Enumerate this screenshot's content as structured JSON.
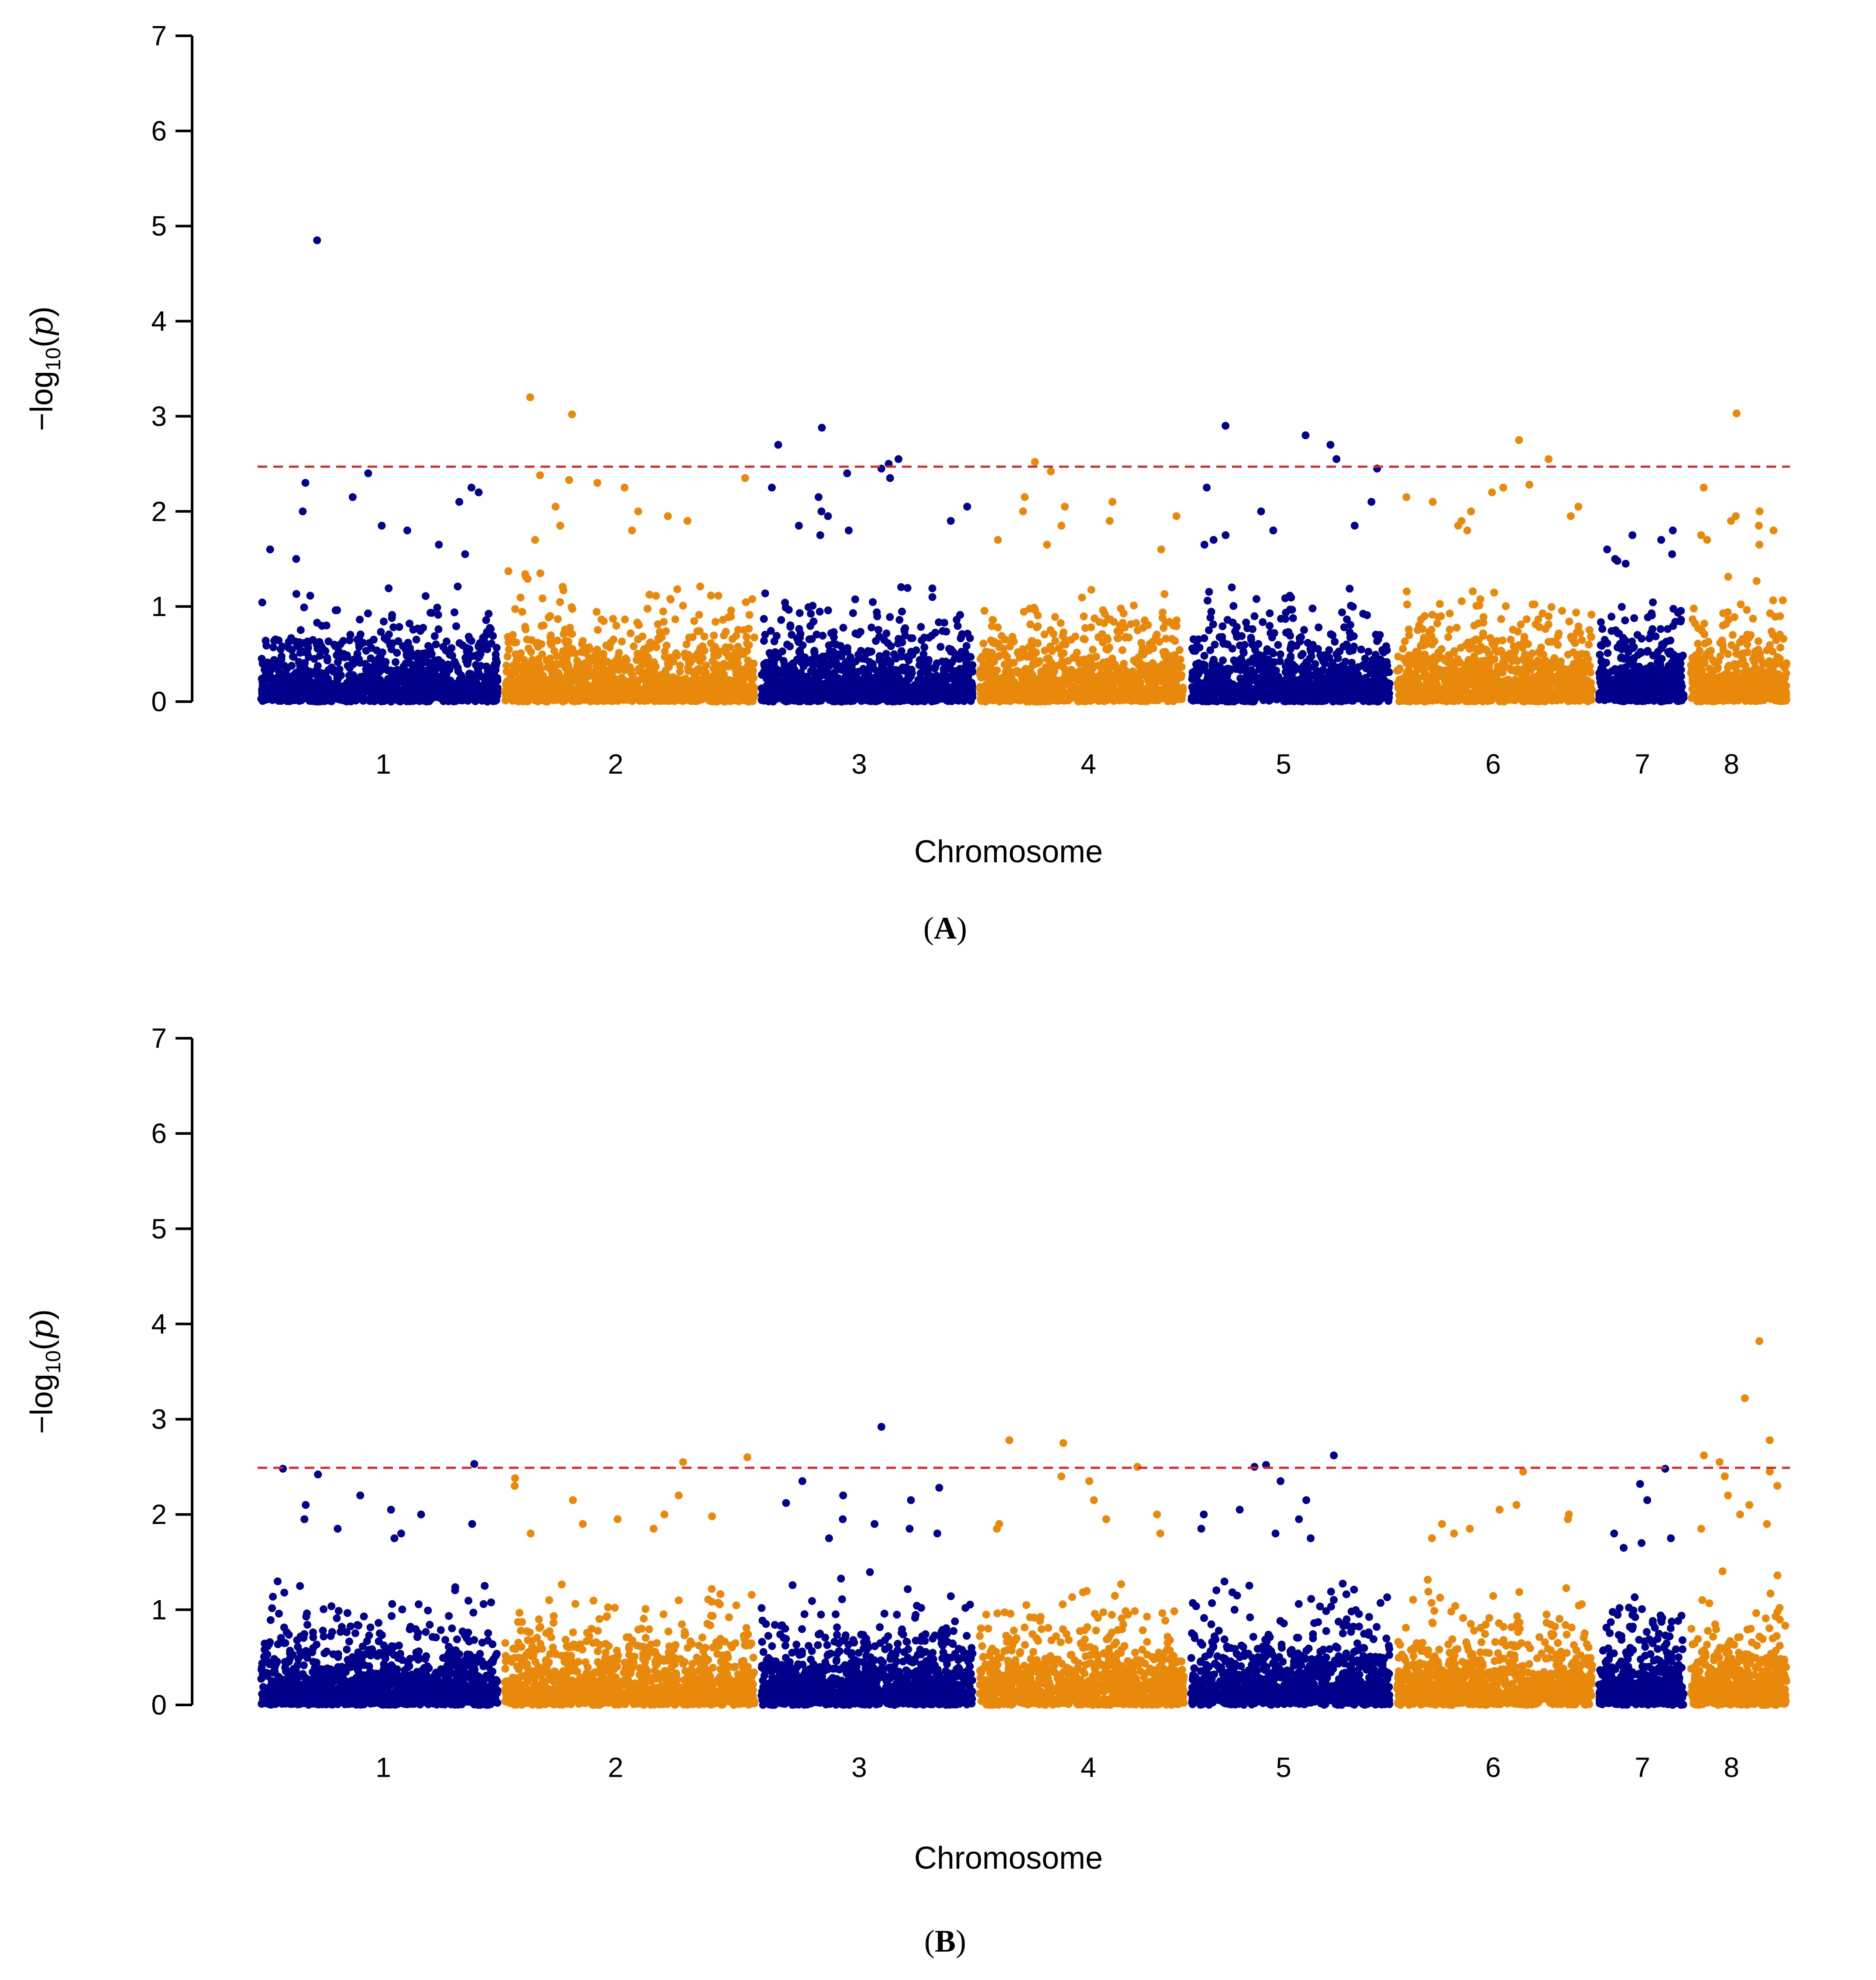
{
  "colors": {
    "series_odd": "#00008b",
    "series_even": "#e8890c",
    "threshold": "#d62a2a",
    "axis": "#000000"
  },
  "chart_data": [
    {
      "type": "scatter",
      "panel_label": "A",
      "xlabel": "Chromosome",
      "ylabel": "−log10(p)",
      "ylim": [
        0,
        7
      ],
      "yticks": [
        "0",
        "1",
        "2",
        "3",
        "4",
        "5",
        "6",
        "7"
      ],
      "threshold": 2.47,
      "chromosomes": [
        {
          "name": "1",
          "background_max": 1.35,
          "peaks": [
            4.85,
            2.4,
            2.3,
            2.25,
            2.2,
            2.15,
            2.1,
            2.0,
            1.85,
            1.8,
            1.65,
            1.6,
            1.55,
            1.5
          ]
        },
        {
          "name": "2",
          "background_max": 1.45,
          "peaks": [
            3.2,
            3.02,
            2.38,
            2.35,
            2.33,
            2.3,
            2.25,
            2.05,
            2.0,
            1.95,
            1.9,
            1.85,
            1.8,
            1.7
          ]
        },
        {
          "name": "3",
          "background_max": 1.55,
          "peaks": [
            2.88,
            2.7,
            2.55,
            2.5,
            2.45,
            2.4,
            2.35,
            2.25,
            2.15,
            2.05,
            2.0,
            1.95,
            1.9,
            1.85,
            1.8,
            1.75
          ]
        },
        {
          "name": "4",
          "background_max": 1.25,
          "peaks": [
            2.52,
            2.42,
            2.15,
            2.1,
            2.05,
            2.0,
            1.95,
            1.9,
            1.85,
            1.7,
            1.65,
            1.6
          ]
        },
        {
          "name": "5",
          "background_max": 1.3,
          "peaks": [
            2.9,
            2.8,
            2.7,
            2.55,
            2.45,
            2.25,
            2.1,
            2.0,
            1.85,
            1.8,
            1.75,
            1.7,
            1.65
          ]
        },
        {
          "name": "6",
          "background_max": 1.25,
          "peaks": [
            2.75,
            2.55,
            2.28,
            2.25,
            2.2,
            2.15,
            2.1,
            2.05,
            2.0,
            1.95,
            1.9,
            1.85,
            1.8
          ]
        },
        {
          "name": "7",
          "background_max": 1.15,
          "peaks": [
            1.8,
            1.75,
            1.7,
            1.6,
            1.55,
            1.5,
            1.48,
            1.45
          ]
        },
        {
          "name": "8",
          "background_max": 1.35,
          "peaks": [
            3.03,
            2.25,
            2.0,
            1.95,
            1.9,
            1.85,
            1.8,
            1.75,
            1.7,
            1.65
          ]
        }
      ]
    },
    {
      "type": "scatter",
      "panel_label": "B",
      "xlabel": "Chromosome",
      "ylabel": "−log10(p)",
      "ylim": [
        0,
        7
      ],
      "yticks": [
        "0",
        "1",
        "2",
        "3",
        "4",
        "5",
        "6",
        "7"
      ],
      "threshold": 2.49,
      "chromosomes": [
        {
          "name": "1",
          "background_max": 1.4,
          "peaks": [
            2.53,
            2.48,
            2.42,
            2.2,
            2.1,
            2.05,
            2.0,
            1.95,
            1.9,
            1.85,
            1.8,
            1.75
          ]
        },
        {
          "name": "2",
          "background_max": 1.5,
          "peaks": [
            2.6,
            2.55,
            2.38,
            2.3,
            2.2,
            2.15,
            2.0,
            1.98,
            1.95,
            1.9,
            1.85,
            1.8
          ]
        },
        {
          "name": "3",
          "background_max": 1.4,
          "peaks": [
            2.92,
            2.35,
            2.28,
            2.2,
            2.15,
            2.12,
            1.95,
            1.9,
            1.85,
            1.8,
            1.75
          ]
        },
        {
          "name": "4",
          "background_max": 1.45,
          "peaks": [
            2.78,
            2.75,
            2.5,
            2.4,
            2.35,
            2.15,
            2.0,
            1.95,
            1.9,
            1.85,
            1.8
          ]
        },
        {
          "name": "5",
          "background_max": 1.45,
          "peaks": [
            2.62,
            2.52,
            2.5,
            2.35,
            2.15,
            2.05,
            2.0,
            1.95,
            1.85,
            1.8,
            1.75
          ]
        },
        {
          "name": "6",
          "background_max": 1.45,
          "peaks": [
            2.45,
            2.1,
            2.05,
            2.0,
            1.95,
            1.9,
            1.85,
            1.8,
            1.75
          ]
        },
        {
          "name": "7",
          "background_max": 1.3,
          "peaks": [
            2.48,
            2.32,
            2.15,
            1.8,
            1.75,
            1.7,
            1.65
          ]
        },
        {
          "name": "8",
          "background_max": 1.6,
          "peaks": [
            3.82,
            3.22,
            2.78,
            2.62,
            2.55,
            2.45,
            2.4,
            2.3,
            2.2,
            2.1,
            2.0,
            1.9,
            1.85
          ]
        }
      ]
    }
  ]
}
